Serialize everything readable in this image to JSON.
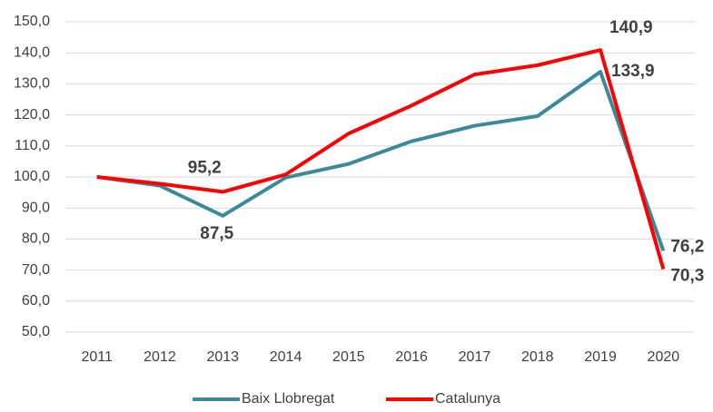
{
  "chart_data": {
    "type": "line",
    "categories": [
      "2011",
      "2012",
      "2013",
      "2014",
      "2015",
      "2016",
      "2017",
      "2018",
      "2019",
      "2020"
    ],
    "series": [
      {
        "name": "Baix Llobregat",
        "color": "#3a8a9c",
        "label_color": "#1f3864",
        "values": [
          100,
          97.2,
          87.5,
          99.8,
          104.2,
          111.5,
          116.5,
          119.6,
          133.9,
          76.2
        ],
        "value_labels": [
          null,
          null,
          "87,5",
          null,
          null,
          null,
          null,
          null,
          "133,9",
          "76,2"
        ]
      },
      {
        "name": "Catalunya",
        "color": "#ff0000",
        "label_color": "#ff0000",
        "values": [
          100,
          97.8,
          95.2,
          100.8,
          114,
          123,
          133,
          136,
          140.9,
          70.3
        ],
        "value_labels": [
          null,
          null,
          "95,2",
          null,
          null,
          null,
          null,
          null,
          "140,9",
          "70,3"
        ]
      }
    ],
    "ylim": [
      50,
      150
    ],
    "yticks": [
      {
        "value": 50,
        "label": "50,0"
      },
      {
        "value": 60,
        "label": "60,0"
      },
      {
        "value": 70,
        "label": "70,0"
      },
      {
        "value": 80,
        "label": "80,0"
      },
      {
        "value": 90,
        "label": "90,0"
      },
      {
        "value": 100,
        "label": "100,0"
      },
      {
        "value": 110,
        "label": "110,0"
      },
      {
        "value": 120,
        "label": "120,0"
      },
      {
        "value": 130,
        "label": "130,0"
      },
      {
        "value": 140,
        "label": "140,0"
      },
      {
        "value": 150,
        "label": "150,0"
      }
    ],
    "grid": true,
    "legend": "bottom"
  }
}
